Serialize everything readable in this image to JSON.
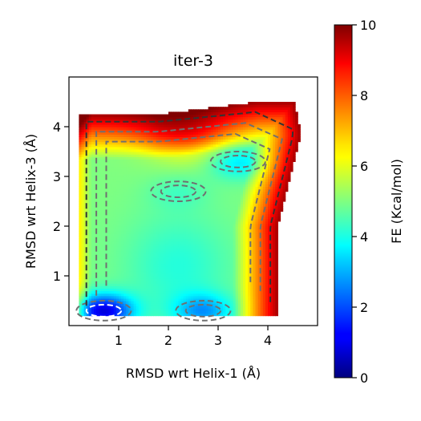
{
  "chart_data": {
    "type": "heatmap",
    "title": "iter-3",
    "xlabel": "RMSD wrt Helix-1 (Å)",
    "ylabel": "RMSD wrt Helix-3 (Å)",
    "xlim": [
      0,
      5
    ],
    "ylim": [
      0,
      5
    ],
    "x_ticks": [
      1,
      2,
      3,
      4
    ],
    "y_ticks": [
      1,
      2,
      3,
      4
    ],
    "grid": false,
    "colorbar": {
      "label": "FE (Kcal/mol)",
      "colormap": "jet",
      "range": [
        0,
        10
      ],
      "ticks": [
        0,
        2,
        4,
        6,
        8,
        10
      ]
    },
    "minima": [
      {
        "x": 0.7,
        "y": 0.3,
        "fe": 1.0
      },
      {
        "x": 2.7,
        "y": 0.3,
        "fe": 3.0
      },
      {
        "x": 2.2,
        "y": 2.7,
        "fe": 4.5
      },
      {
        "x": 3.4,
        "y": 3.3,
        "fe": 3.5
      }
    ],
    "contour_line_style": "dashed"
  }
}
